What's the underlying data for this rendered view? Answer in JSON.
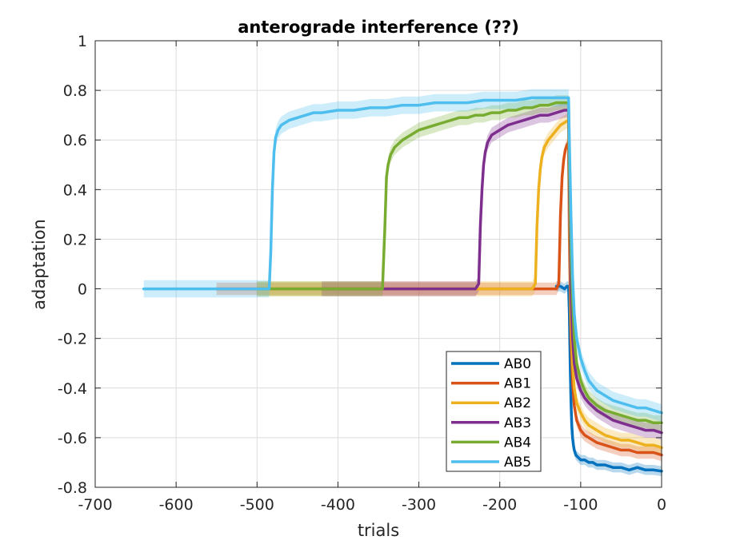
{
  "chart_data": {
    "type": "line",
    "title": "anterograde interference (??)",
    "xlabel": "trials",
    "ylabel": "adaptation",
    "xlim": [
      -700,
      0
    ],
    "ylim": [
      -0.8,
      1
    ],
    "xticks": [
      -700,
      -600,
      -500,
      -400,
      -300,
      -200,
      -100,
      0
    ],
    "yticks": [
      -0.8,
      -0.6,
      -0.4,
      -0.2,
      0,
      0.2,
      0.4,
      0.6,
      0.8,
      1
    ],
    "xtick_labels": [
      "-700",
      "-600",
      "-500",
      "-400",
      "-300",
      "-200",
      "-100",
      "0"
    ],
    "ytick_labels": [
      "-0.8",
      "-0.6",
      "-0.4",
      "-0.2",
      "0",
      "0.2",
      "0.4",
      "0.6",
      "0.8",
      "1"
    ],
    "grid": true,
    "legend_position": "lower-right",
    "series": [
      {
        "name": "AB0",
        "color": "#0072BD",
        "band": 0.02,
        "x": [
          -130,
          -125,
          -120,
          -117,
          -115,
          -114,
          -113,
          -112,
          -111,
          -110,
          -109,
          -108,
          -106,
          -103,
          -100,
          -95,
          -90,
          -85,
          -80,
          -70,
          -60,
          -50,
          -40,
          -30,
          -20,
          -10,
          0
        ],
        "y": [
          0.01,
          0.01,
          0.0,
          0.01,
          0.01,
          -0.1,
          -0.3,
          -0.45,
          -0.55,
          -0.6,
          -0.63,
          -0.65,
          -0.67,
          -0.68,
          -0.69,
          -0.69,
          -0.7,
          -0.7,
          -0.71,
          -0.71,
          -0.72,
          -0.72,
          -0.73,
          -0.72,
          -0.73,
          -0.73,
          -0.735
        ]
      },
      {
        "name": "AB1",
        "color": "#D95319",
        "band": 0.025,
        "x": [
          -550,
          -500,
          -450,
          -400,
          -350,
          -300,
          -250,
          -200,
          -150,
          -130,
          -127,
          -125,
          -123,
          -121,
          -119,
          -117,
          -115,
          -114,
          -112,
          -110,
          -108,
          -105,
          -100,
          -95,
          -90,
          -80,
          -70,
          -60,
          -50,
          -40,
          -30,
          -20,
          -10,
          0
        ],
        "y": [
          0.0,
          0.0,
          0.0,
          0.0,
          0.0,
          0.0,
          0.0,
          0.0,
          0.0,
          0.0,
          0.02,
          0.3,
          0.45,
          0.52,
          0.56,
          0.58,
          0.59,
          0.2,
          -0.2,
          -0.38,
          -0.47,
          -0.53,
          -0.57,
          -0.59,
          -0.6,
          -0.62,
          -0.63,
          -0.64,
          -0.65,
          -0.65,
          -0.66,
          -0.66,
          -0.66,
          -0.67
        ]
      },
      {
        "name": "AB2",
        "color": "#EDB120",
        "band": 0.03,
        "x": [
          -500,
          -450,
          -400,
          -350,
          -300,
          -250,
          -200,
          -160,
          -156,
          -154,
          -152,
          -150,
          -148,
          -145,
          -140,
          -135,
          -130,
          -125,
          -120,
          -115,
          -114,
          -112,
          -110,
          -108,
          -105,
          -100,
          -95,
          -90,
          -80,
          -70,
          -60,
          -50,
          -40,
          -30,
          -20,
          -10,
          0
        ],
        "y": [
          0.0,
          0.0,
          0.0,
          0.0,
          0.0,
          0.0,
          0.0,
          0.0,
          0.02,
          0.25,
          0.4,
          0.48,
          0.53,
          0.57,
          0.6,
          0.62,
          0.64,
          0.66,
          0.67,
          0.68,
          0.3,
          -0.1,
          -0.3,
          -0.4,
          -0.46,
          -0.5,
          -0.53,
          -0.55,
          -0.57,
          -0.59,
          -0.6,
          -0.61,
          -0.61,
          -0.62,
          -0.63,
          -0.63,
          -0.64
        ]
      },
      {
        "name": "AB3",
        "color": "#7E2F8E",
        "band": 0.03,
        "x": [
          -420,
          -400,
          -350,
          -300,
          -250,
          -230,
          -226,
          -224,
          -222,
          -220,
          -218,
          -215,
          -210,
          -200,
          -190,
          -180,
          -170,
          -160,
          -150,
          -140,
          -130,
          -120,
          -115,
          -114,
          -112,
          -110,
          -108,
          -105,
          -100,
          -95,
          -90,
          -80,
          -70,
          -60,
          -50,
          -40,
          -30,
          -20,
          -10,
          0
        ],
        "y": [
          0.0,
          0.0,
          0.0,
          0.0,
          0.0,
          0.0,
          0.02,
          0.25,
          0.4,
          0.5,
          0.55,
          0.59,
          0.62,
          0.64,
          0.66,
          0.67,
          0.68,
          0.69,
          0.7,
          0.7,
          0.71,
          0.72,
          0.72,
          0.4,
          0.0,
          -0.2,
          -0.3,
          -0.36,
          -0.41,
          -0.44,
          -0.46,
          -0.49,
          -0.51,
          -0.53,
          -0.54,
          -0.55,
          -0.56,
          -0.57,
          -0.57,
          -0.58
        ]
      },
      {
        "name": "AB4",
        "color": "#77AC30",
        "band": 0.03,
        "x": [
          -500,
          -450,
          -400,
          -350,
          -345,
          -342,
          -340,
          -338,
          -335,
          -330,
          -320,
          -310,
          -300,
          -290,
          -280,
          -270,
          -260,
          -250,
          -240,
          -230,
          -220,
          -210,
          -200,
          -190,
          -180,
          -170,
          -160,
          -150,
          -140,
          -130,
          -120,
          -115,
          -114,
          -112,
          -110,
          -108,
          -105,
          -100,
          -95,
          -90,
          -80,
          -70,
          -60,
          -50,
          -40,
          -30,
          -20,
          -10,
          0
        ],
        "y": [
          0.0,
          0.0,
          0.0,
          0.0,
          0.0,
          0.25,
          0.45,
          0.5,
          0.54,
          0.57,
          0.6,
          0.62,
          0.64,
          0.65,
          0.66,
          0.67,
          0.68,
          0.69,
          0.69,
          0.7,
          0.7,
          0.71,
          0.71,
          0.72,
          0.72,
          0.73,
          0.73,
          0.74,
          0.74,
          0.75,
          0.75,
          0.75,
          0.5,
          0.15,
          -0.05,
          -0.2,
          -0.3,
          -0.37,
          -0.41,
          -0.44,
          -0.47,
          -0.49,
          -0.5,
          -0.51,
          -0.52,
          -0.53,
          -0.53,
          -0.54,
          -0.54
        ]
      },
      {
        "name": "AB5",
        "color": "#4DBEEE",
        "band": 0.035,
        "x": [
          -640,
          -600,
          -550,
          -500,
          -485,
          -483,
          -481,
          -479,
          -477,
          -474,
          -470,
          -465,
          -460,
          -450,
          -440,
          -430,
          -420,
          -400,
          -380,
          -360,
          -340,
          -320,
          -300,
          -280,
          -260,
          -240,
          -220,
          -200,
          -180,
          -160,
          -140,
          -120,
          -115,
          -114,
          -112,
          -110,
          -108,
          -105,
          -100,
          -95,
          -90,
          -80,
          -70,
          -60,
          -50,
          -40,
          -30,
          -20,
          -10,
          0
        ],
        "y": [
          0.0,
          0.0,
          0.0,
          0.0,
          0.0,
          0.15,
          0.4,
          0.55,
          0.61,
          0.64,
          0.66,
          0.67,
          0.68,
          0.69,
          0.7,
          0.71,
          0.71,
          0.72,
          0.72,
          0.73,
          0.73,
          0.74,
          0.74,
          0.75,
          0.75,
          0.75,
          0.76,
          0.76,
          0.76,
          0.77,
          0.77,
          0.77,
          0.77,
          0.6,
          0.3,
          0.05,
          -0.1,
          -0.2,
          -0.28,
          -0.33,
          -0.37,
          -0.41,
          -0.43,
          -0.45,
          -0.46,
          -0.47,
          -0.48,
          -0.48,
          -0.49,
          -0.5
        ]
      }
    ]
  }
}
